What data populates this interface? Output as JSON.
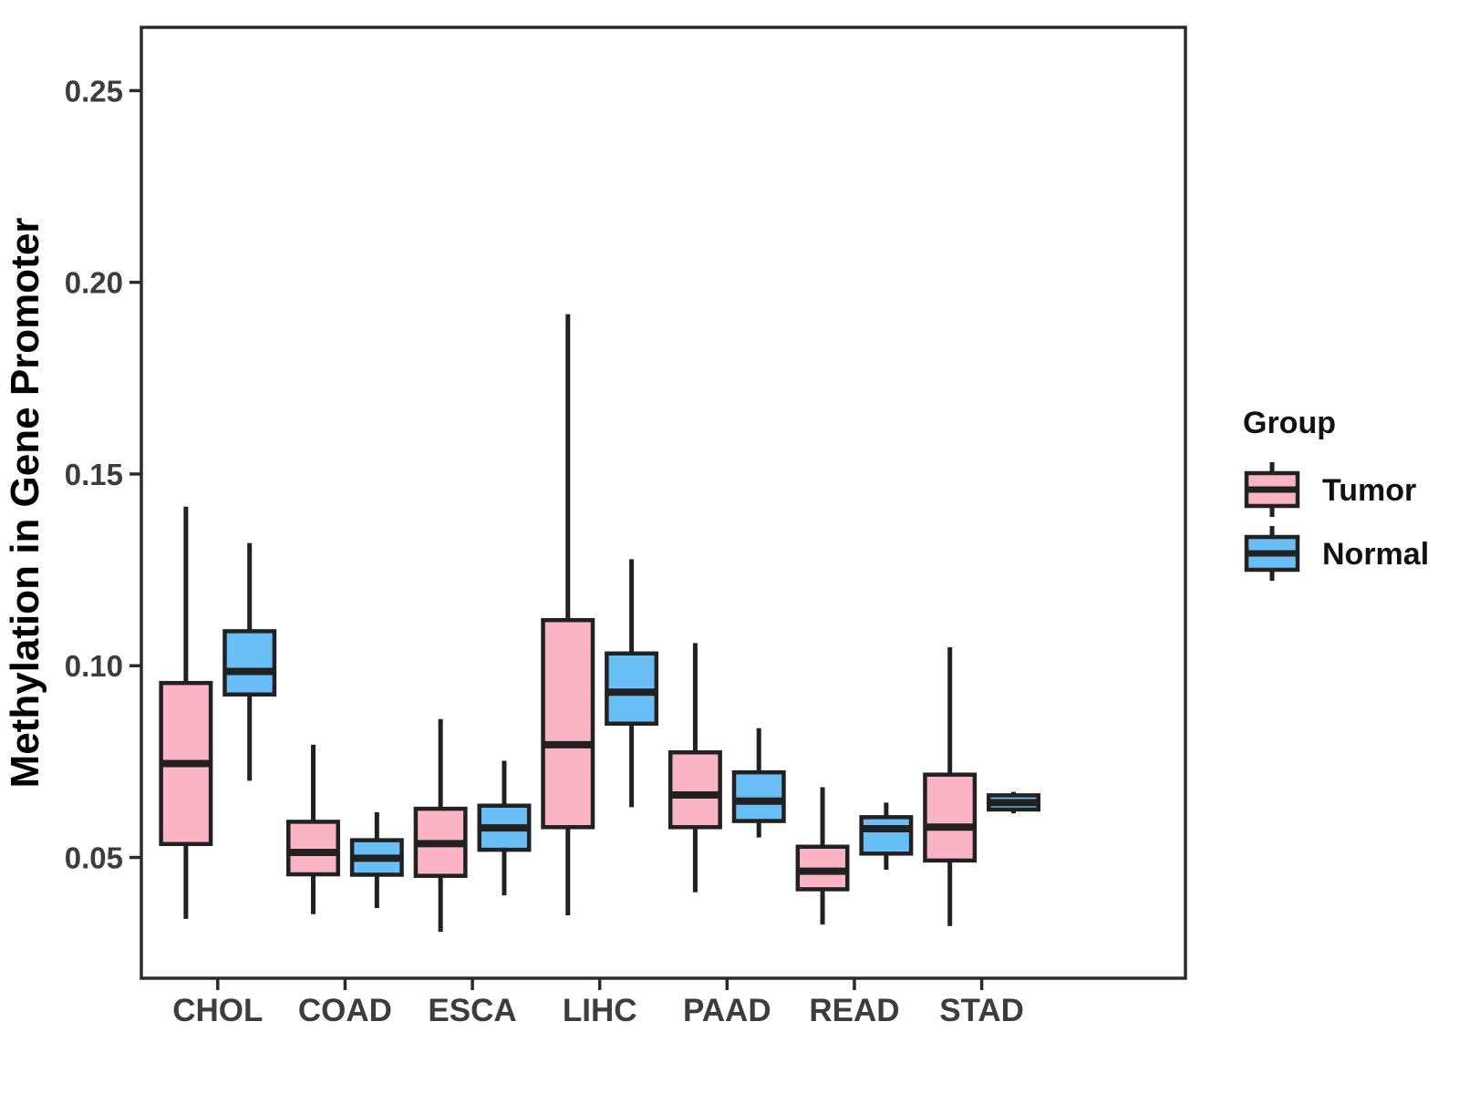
{
  "chart_data": {
    "type": "boxplot",
    "title": "",
    "xlabel": "",
    "ylabel": "Methylation in Gene Promoter",
    "categories": [
      "CHOL",
      "COAD",
      "ESCA",
      "LIHC",
      "PAAD",
      "READ",
      "STAD"
    ],
    "y_ticks": [
      {
        "label": "0.05",
        "value": 0.05
      },
      {
        "label": "0.10",
        "value": 0.1
      },
      {
        "label": "0.15",
        "value": 0.15
      },
      {
        "label": "0.20",
        "value": 0.2
      },
      {
        "label": "0.25",
        "value": 0.25
      }
    ],
    "ylim": [
      0.0185,
      0.2665
    ],
    "grid": "off",
    "legend": {
      "title": "Group",
      "position": "right",
      "entries": [
        {
          "label": "Tumor",
          "color": "#FAB4C3"
        },
        {
          "label": "Normal",
          "color": "#69BEF5"
        }
      ]
    },
    "colors": {
      "tumor_fill": "#FAB4C3",
      "normal_fill": "#69BEF5",
      "line": "#212121",
      "panel_border": "#2b2b2b",
      "tick_text": "#3d3d3d",
      "axis_title_text": "#000000",
      "legend_text": "#111111",
      "background": "#ffffff"
    },
    "series": [
      {
        "name": "Tumor",
        "color": "#FAB4C3",
        "boxes": [
          {
            "category": "CHOL",
            "min": 0.034,
            "q1": 0.0535,
            "median": 0.0745,
            "q3": 0.0955,
            "max": 0.1415
          },
          {
            "category": "COAD",
            "min": 0.0352,
            "q1": 0.0456,
            "median": 0.0513,
            "q3": 0.0593,
            "max": 0.0794
          },
          {
            "category": "ESCA",
            "min": 0.0306,
            "q1": 0.0452,
            "median": 0.0536,
            "q3": 0.0627,
            "max": 0.0861
          },
          {
            "category": "LIHC",
            "min": 0.0349,
            "q1": 0.0579,
            "median": 0.0794,
            "q3": 0.1119,
            "max": 0.1917
          },
          {
            "category": "PAAD",
            "min": 0.0409,
            "q1": 0.0579,
            "median": 0.0663,
            "q3": 0.0774,
            "max": 0.1059
          },
          {
            "category": "READ",
            "min": 0.0325,
            "q1": 0.0417,
            "median": 0.0464,
            "q3": 0.0528,
            "max": 0.0683
          },
          {
            "category": "STAD",
            "min": 0.0321,
            "q1": 0.0492,
            "median": 0.0579,
            "q3": 0.0716,
            "max": 0.1048
          }
        ]
      },
      {
        "name": "Normal",
        "color": "#69BEF5",
        "boxes": [
          {
            "category": "CHOL",
            "min": 0.07,
            "q1": 0.0925,
            "median": 0.0985,
            "q3": 0.109,
            "max": 0.132
          },
          {
            "category": "COAD",
            "min": 0.0368,
            "q1": 0.0455,
            "median": 0.0498,
            "q3": 0.0545,
            "max": 0.0618
          },
          {
            "category": "ESCA",
            "min": 0.0401,
            "q1": 0.052,
            "median": 0.0577,
            "q3": 0.0635,
            "max": 0.0752
          },
          {
            "category": "LIHC",
            "min": 0.0631,
            "q1": 0.0849,
            "median": 0.0931,
            "q3": 0.1032,
            "max": 0.1278
          },
          {
            "category": "PAAD",
            "min": 0.0552,
            "q1": 0.0595,
            "median": 0.0647,
            "q3": 0.0722,
            "max": 0.0837
          },
          {
            "category": "READ",
            "min": 0.0468,
            "q1": 0.051,
            "median": 0.0575,
            "q3": 0.0605,
            "max": 0.0643
          },
          {
            "category": "STAD",
            "min": 0.0615,
            "q1": 0.0625,
            "median": 0.0643,
            "q3": 0.0662,
            "max": 0.0671
          }
        ]
      }
    ]
  }
}
